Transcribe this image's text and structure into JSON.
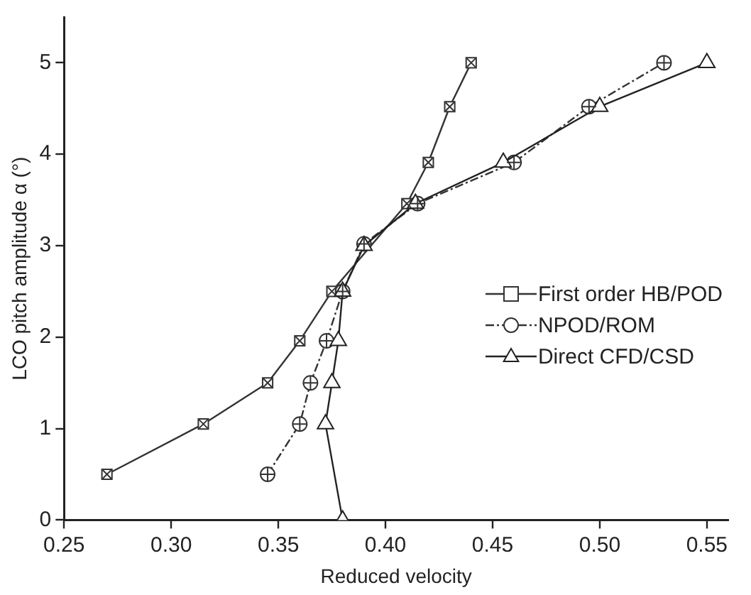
{
  "chart_data": {
    "type": "line",
    "xlabel": "Reduced velocity",
    "ylabel": "LCO pitch amplitude α (°)",
    "xlim": [
      0.25,
      0.56
    ],
    "xticks": [
      {
        "value": 0.25,
        "label": "0.25"
      },
      {
        "value": 0.3,
        "label": "0.30"
      },
      {
        "value": 0.35,
        "label": "0.35"
      },
      {
        "value": 0.4,
        "label": "0.40"
      },
      {
        "value": 0.45,
        "label": "0.45"
      },
      {
        "value": 0.5,
        "label": "0.50"
      },
      {
        "value": 0.55,
        "label": "0.55"
      }
    ],
    "ylim": [
      0,
      5.5
    ],
    "yticks": [
      0,
      1,
      2,
      3,
      4,
      5
    ],
    "grid": false,
    "legend": "right",
    "series": [
      {
        "name": "First order HB/POD",
        "color": "#333333",
        "marker": "square",
        "line_style": "solid",
        "x": [
          0.27,
          0.315,
          0.345,
          0.36,
          0.375,
          0.41,
          0.42,
          0.43,
          0.44
        ],
        "values": [
          0.5,
          1.05,
          1.5,
          1.96,
          2.5,
          3.46,
          3.91,
          4.52,
          5.0
        ]
      },
      {
        "name": "NPOD/ROM",
        "color": "#333333",
        "marker": "circle",
        "line_style": "dashed",
        "x": [
          0.345,
          0.36,
          0.365,
          0.3725,
          0.38,
          0.39,
          0.415,
          0.46,
          0.495,
          0.53
        ],
        "values": [
          0.5,
          1.05,
          1.5,
          1.96,
          2.5,
          3.02,
          3.46,
          3.91,
          4.52,
          5.0
        ]
      },
      {
        "name": "Direct CFD/CSD",
        "color": "#222222",
        "marker": "triangle",
        "line_style": "solid",
        "x": [
          0.38,
          0.372,
          0.375,
          0.378,
          0.38,
          0.39,
          0.414,
          0.455,
          0.5,
          0.55
        ],
        "values": [
          0,
          1.05,
          1.5,
          1.96,
          2.5,
          3.0,
          3.46,
          3.91,
          4.52,
          5.0
        ]
      }
    ]
  }
}
